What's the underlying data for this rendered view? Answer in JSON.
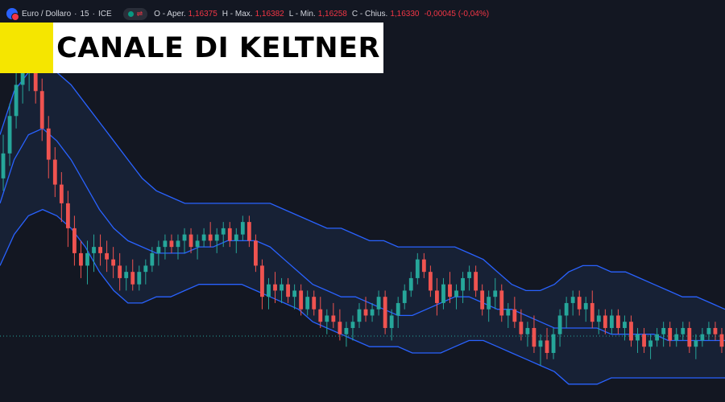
{
  "header": {
    "symbol": "Euro / Dollaro",
    "interval": "15",
    "exchange": "ICE",
    "open_label": "O - Aper.",
    "open": "1,16375",
    "high_label": "H - Max.",
    "high": "1,16382",
    "low_label": "L - Min.",
    "low": "1,16258",
    "close_label": "C - Chius.",
    "close": "1,16330",
    "change": "-0,00045 (-0,04%)",
    "icons": [
      "currency-pair-icon",
      "market-status-icon"
    ]
  },
  "title": "CANALE DI KELTNER",
  "colors": {
    "background": "#131722",
    "up": "#26a69a",
    "down": "#ef5350",
    "channel_line": "#2962ff",
    "channel_fill": "#1c2a45",
    "title_accent": "#f5e600"
  },
  "chart_data": {
    "type": "candlestick",
    "indicator": "Keltner Channel",
    "ylim": [
      1.1612,
      1.1661
    ],
    "last_price_line": 1.16187,
    "candles": [
      [
        1.1644,
        1.1651,
        1.1642,
        1.1648
      ],
      [
        1.1648,
        1.1656,
        1.1646,
        1.1654
      ],
      [
        1.1654,
        1.1662,
        1.1652,
        1.1659
      ],
      [
        1.1659,
        1.1665,
        1.1656,
        1.1661
      ],
      [
        1.1661,
        1.1666,
        1.1658,
        1.1662
      ],
      [
        1.1662,
        1.1665,
        1.1656,
        1.1658
      ],
      [
        1.1658,
        1.166,
        1.165,
        1.1652
      ],
      [
        1.1652,
        1.1654,
        1.1644,
        1.1647
      ],
      [
        1.1647,
        1.1649,
        1.1641,
        1.1643
      ],
      [
        1.1643,
        1.1645,
        1.1637,
        1.164
      ],
      [
        1.164,
        1.1642,
        1.1633,
        1.1636
      ],
      [
        1.1636,
        1.1638,
        1.163,
        1.1632
      ],
      [
        1.1632,
        1.1634,
        1.1628,
        1.163
      ],
      [
        1.163,
        1.1634,
        1.1627,
        1.1632
      ],
      [
        1.1632,
        1.1635,
        1.1629,
        1.1633
      ],
      [
        1.1633,
        1.1635,
        1.163,
        1.1632
      ],
      [
        1.1632,
        1.1634,
        1.1629,
        1.1631
      ],
      [
        1.1631,
        1.1633,
        1.1628,
        1.163
      ],
      [
        1.163,
        1.1632,
        1.1626,
        1.1628
      ],
      [
        1.1628,
        1.163,
        1.1626,
        1.1629
      ],
      [
        1.1629,
        1.1631,
        1.1626,
        1.1627
      ],
      [
        1.1627,
        1.163,
        1.1626,
        1.1629
      ],
      [
        1.1629,
        1.1631,
        1.1627,
        1.163
      ],
      [
        1.163,
        1.1633,
        1.1629,
        1.1632
      ],
      [
        1.1632,
        1.1634,
        1.163,
        1.1633
      ],
      [
        1.1633,
        1.1635,
        1.1631,
        1.1634
      ],
      [
        1.1634,
        1.1635,
        1.1632,
        1.1633
      ],
      [
        1.1633,
        1.1635,
        1.1631,
        1.1634
      ],
      [
        1.1634,
        1.1636,
        1.1632,
        1.1635
      ],
      [
        1.1635,
        1.1636,
        1.1632,
        1.1633
      ],
      [
        1.1633,
        1.1635,
        1.1631,
        1.1634
      ],
      [
        1.1634,
        1.1636,
        1.1633,
        1.1635
      ],
      [
        1.1635,
        1.1637,
        1.1633,
        1.1634
      ],
      [
        1.1634,
        1.1636,
        1.1632,
        1.1635
      ],
      [
        1.1635,
        1.1637,
        1.1633,
        1.1636
      ],
      [
        1.1636,
        1.1637,
        1.1633,
        1.1634
      ],
      [
        1.1634,
        1.1636,
        1.1632,
        1.1635
      ],
      [
        1.1635,
        1.1638,
        1.1634,
        1.1637
      ],
      [
        1.1637,
        1.1638,
        1.1633,
        1.1634
      ],
      [
        1.1634,
        1.1635,
        1.1629,
        1.163
      ],
      [
        1.163,
        1.1631,
        1.1623,
        1.1625
      ],
      [
        1.1625,
        1.1628,
        1.1623,
        1.1627
      ],
      [
        1.1627,
        1.1629,
        1.1624,
        1.1626
      ],
      [
        1.1626,
        1.1628,
        1.1624,
        1.1627
      ],
      [
        1.1627,
        1.1628,
        1.1624,
        1.1625
      ],
      [
        1.1625,
        1.1627,
        1.1623,
        1.1626
      ],
      [
        1.1626,
        1.1627,
        1.1622,
        1.1623
      ],
      [
        1.1623,
        1.1626,
        1.1622,
        1.1625
      ],
      [
        1.1625,
        1.1626,
        1.1622,
        1.1623
      ],
      [
        1.1623,
        1.1625,
        1.162,
        1.1621
      ],
      [
        1.1621,
        1.1623,
        1.1619,
        1.1622
      ],
      [
        1.1622,
        1.1624,
        1.162,
        1.1621
      ],
      [
        1.1621,
        1.1623,
        1.1618,
        1.1619
      ],
      [
        1.1619,
        1.1621,
        1.1617,
        1.162
      ],
      [
        1.162,
        1.1622,
        1.1618,
        1.1621
      ],
      [
        1.1621,
        1.1624,
        1.162,
        1.1623
      ],
      [
        1.1623,
        1.1625,
        1.1621,
        1.1622
      ],
      [
        1.1622,
        1.1624,
        1.1621,
        1.1623
      ],
      [
        1.1623,
        1.1626,
        1.1622,
        1.1625
      ],
      [
        1.1625,
        1.1626,
        1.1619,
        1.162
      ],
      [
        1.162,
        1.1623,
        1.1618,
        1.1622
      ],
      [
        1.1622,
        1.1625,
        1.162,
        1.1624
      ],
      [
        1.1624,
        1.1627,
        1.1623,
        1.1626
      ],
      [
        1.1626,
        1.1629,
        1.1625,
        1.1628
      ],
      [
        1.1628,
        1.1632,
        1.1627,
        1.1631
      ],
      [
        1.1631,
        1.1632,
        1.1628,
        1.1629
      ],
      [
        1.1629,
        1.163,
        1.1625,
        1.1626
      ],
      [
        1.1626,
        1.1628,
        1.1622,
        1.1624
      ],
      [
        1.1624,
        1.1628,
        1.1623,
        1.1627
      ],
      [
        1.1627,
        1.1629,
        1.1624,
        1.1625
      ],
      [
        1.1625,
        1.1627,
        1.1623,
        1.1626
      ],
      [
        1.1626,
        1.1629,
        1.1624,
        1.1628
      ],
      [
        1.1628,
        1.163,
        1.1626,
        1.1629
      ],
      [
        1.1629,
        1.163,
        1.1625,
        1.1626
      ],
      [
        1.1626,
        1.1627,
        1.1622,
        1.1623
      ],
      [
        1.1623,
        1.1626,
        1.1621,
        1.1625
      ],
      [
        1.1625,
        1.1628,
        1.1623,
        1.1626
      ],
      [
        1.1626,
        1.1627,
        1.1621,
        1.1622
      ],
      [
        1.1622,
        1.1624,
        1.162,
        1.1623
      ],
      [
        1.1623,
        1.1625,
        1.162,
        1.1621
      ],
      [
        1.1621,
        1.1623,
        1.1618,
        1.1619
      ],
      [
        1.1619,
        1.1621,
        1.1617,
        1.162
      ],
      [
        1.162,
        1.1622,
        1.1616,
        1.1617
      ],
      [
        1.1617,
        1.1619,
        1.1614,
        1.1618
      ],
      [
        1.1618,
        1.162,
        1.1615,
        1.1616
      ],
      [
        1.1616,
        1.162,
        1.1615,
        1.1619
      ],
      [
        1.1619,
        1.1623,
        1.1617,
        1.1622
      ],
      [
        1.1622,
        1.1625,
        1.162,
        1.1624
      ],
      [
        1.1624,
        1.1626,
        1.1622,
        1.1625
      ],
      [
        1.1625,
        1.1626,
        1.1622,
        1.1623
      ],
      [
        1.1623,
        1.1625,
        1.1621,
        1.1624
      ],
      [
        1.1624,
        1.1626,
        1.162,
        1.1621
      ],
      [
        1.1621,
        1.1623,
        1.1619,
        1.1622
      ],
      [
        1.1622,
        1.1623,
        1.1619,
        1.162
      ],
      [
        1.162,
        1.1623,
        1.1619,
        1.1622
      ],
      [
        1.1622,
        1.1623,
        1.1619,
        1.162
      ],
      [
        1.162,
        1.1622,
        1.1618,
        1.1621
      ],
      [
        1.1621,
        1.1622,
        1.1617,
        1.1618
      ],
      [
        1.1618,
        1.162,
        1.1616,
        1.1619
      ],
      [
        1.1619,
        1.162,
        1.1616,
        1.1617
      ],
      [
        1.1617,
        1.1619,
        1.1615,
        1.1618
      ],
      [
        1.1618,
        1.162,
        1.1617,
        1.1619
      ],
      [
        1.1619,
        1.1621,
        1.1617,
        1.162
      ],
      [
        1.162,
        1.1621,
        1.1617,
        1.1618
      ],
      [
        1.1618,
        1.162,
        1.1617,
        1.1619
      ],
      [
        1.1619,
        1.1621,
        1.1618,
        1.162
      ],
      [
        1.162,
        1.1621,
        1.1616,
        1.1617
      ],
      [
        1.1617,
        1.1619,
        1.1615,
        1.1618
      ],
      [
        1.1618,
        1.162,
        1.1617,
        1.1619
      ],
      [
        1.1619,
        1.1621,
        1.1618,
        1.162
      ],
      [
        1.162,
        1.1621,
        1.1618,
        1.1619
      ],
      [
        1.1619,
        1.162,
        1.1616,
        1.1617
      ]
    ],
    "keltner_upper": [
      1.1651,
      1.1658,
      1.1661,
      1.1662,
      1.1661,
      1.1659,
      1.1656,
      1.1653,
      1.165,
      1.1647,
      1.1644,
      1.1642,
      1.1641,
      1.164,
      1.164,
      1.164,
      1.164,
      1.164,
      1.164,
      1.164,
      1.1639,
      1.1638,
      1.1637,
      1.1636,
      1.1636,
      1.1635,
      1.1634,
      1.1634,
      1.1633,
      1.1633,
      1.1633,
      1.1633,
      1.1633,
      1.1632,
      1.1631,
      1.1629,
      1.1627,
      1.1626,
      1.1626,
      1.1627,
      1.1629,
      1.163,
      1.163,
      1.1629,
      1.1629,
      1.1628,
      1.1627,
      1.1626,
      1.1625,
      1.1625,
      1.1624,
      1.1623
    ],
    "keltner_middle": [
      1.164,
      1.1647,
      1.1651,
      1.1652,
      1.165,
      1.1647,
      1.1643,
      1.1639,
      1.1636,
      1.1634,
      1.1633,
      1.1632,
      1.1632,
      1.1632,
      1.1633,
      1.1633,
      1.1634,
      1.1634,
      1.1634,
      1.1633,
      1.1631,
      1.1629,
      1.1627,
      1.1626,
      1.1625,
      1.1625,
      1.1624,
      1.1623,
      1.1622,
      1.1622,
      1.1623,
      1.1624,
      1.1625,
      1.1625,
      1.1624,
      1.1623,
      1.1623,
      1.1622,
      1.1621,
      1.162,
      1.162,
      1.162,
      1.162,
      1.1619,
      1.1619,
      1.1619,
      1.1619,
      1.1618,
      1.1618,
      1.1618,
      1.1618,
      1.1618
    ],
    "keltner_lower": [
      1.163,
      1.1635,
      1.1638,
      1.1639,
      1.1638,
      1.1636,
      1.1633,
      1.1629,
      1.1626,
      1.1624,
      1.1624,
      1.1625,
      1.1625,
      1.1626,
      1.1627,
      1.1627,
      1.1627,
      1.1627,
      1.1626,
      1.1625,
      1.1624,
      1.1623,
      1.1621,
      1.162,
      1.1619,
      1.1618,
      1.1617,
      1.1617,
      1.1617,
      1.1616,
      1.1616,
      1.1616,
      1.1617,
      1.1618,
      1.1618,
      1.1617,
      1.1616,
      1.1615,
      1.1614,
      1.1613,
      1.1611,
      1.1611,
      1.1611,
      1.1612,
      1.1612,
      1.1612,
      1.1612,
      1.1612,
      1.1612,
      1.1612,
      1.1612,
      1.1612
    ]
  }
}
